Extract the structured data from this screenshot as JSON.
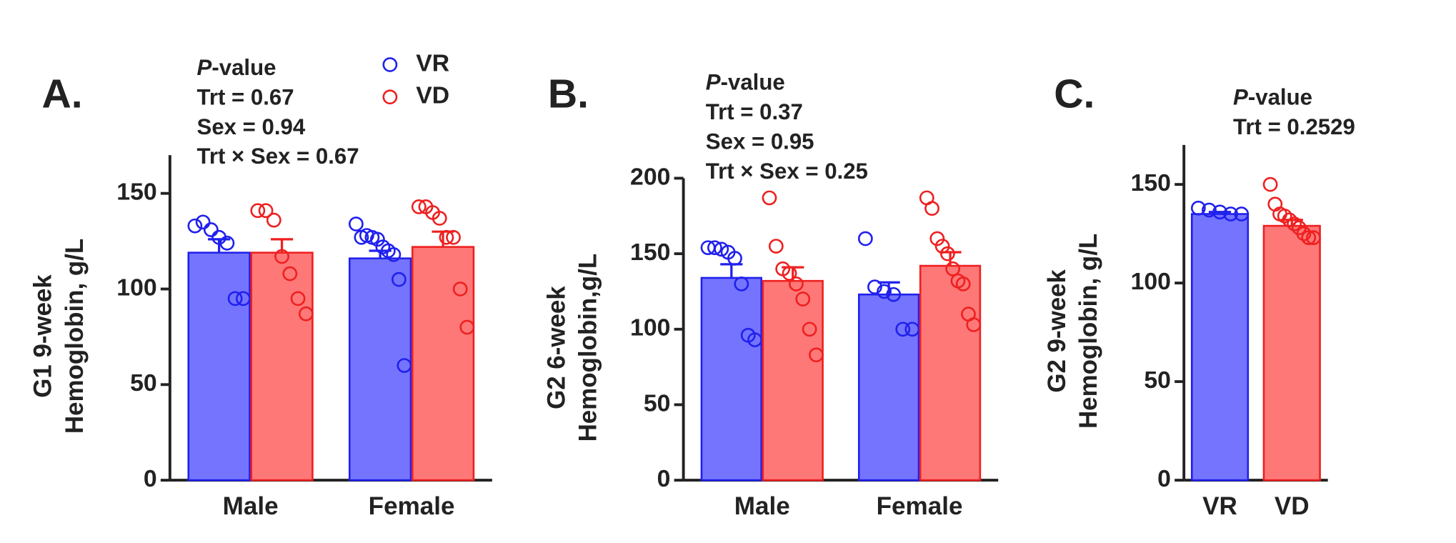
{
  "chart_data": [
    {
      "type": "bar",
      "label": "A.",
      "ylabel": [
        "G1 9-week",
        "Hemoglobin, g/L"
      ],
      "annotations": [
        "P-value",
        "Trt = 0.67",
        "Sex = 0.94",
        "Trt × Sex = 0.67"
      ],
      "categories": [
        "Male",
        "Female"
      ],
      "legend": true,
      "ylim": [
        0,
        170
      ],
      "yticks": [
        0,
        50,
        100,
        150
      ],
      "series": [
        {
          "name": "VR",
          "color": "#7474ff",
          "edge": "#2020ee",
          "values": [
            119,
            116
          ],
          "errors": [
            7,
            4
          ],
          "points": [
            [
              133,
              135,
              131,
              127,
              124,
              95,
              95
            ],
            [
              134,
              127,
              128,
              127,
              126,
              122,
              120,
              118,
              105,
              60
            ]
          ]
        },
        {
          "name": "VD",
          "color": "#ff7878",
          "edge": "#ee2020",
          "values": [
            119,
            122
          ],
          "errors": [
            7,
            8
          ],
          "points": [
            [
              141,
              141,
              136,
              117,
              108,
              95,
              87
            ],
            [
              143,
              143,
              140,
              137,
              127,
              127,
              100,
              80
            ]
          ]
        }
      ]
    },
    {
      "type": "bar",
      "label": "B.",
      "ylabel": [
        "G2 6-week",
        "Hemoglobin,g/L"
      ],
      "annotations": [
        "P-value",
        "Trt = 0.37",
        "Sex = 0.95",
        "Trt × Sex = 0.25"
      ],
      "categories": [
        "Male",
        "Female"
      ],
      "legend": false,
      "ylim": [
        0,
        200
      ],
      "yticks": [
        0,
        50,
        100,
        150,
        200
      ],
      "series": [
        {
          "name": "VR",
          "color": "#7474ff",
          "edge": "#2020ee",
          "values": [
            134,
            123
          ],
          "errors": [
            9,
            8
          ],
          "points": [
            [
              154,
              154,
              153,
              151,
              147,
              130,
              96,
              93
            ],
            [
              160,
              128,
              125,
              123,
              100,
              100
            ]
          ]
        },
        {
          "name": "VD",
          "color": "#ff7878",
          "edge": "#ee2020",
          "values": [
            132,
            142
          ],
          "errors": [
            9,
            9
          ],
          "points": [
            [
              187,
              155,
              140,
              137,
              130,
              120,
              100,
              83
            ],
            [
              187,
              180,
              160,
              155,
              150,
              140,
              132,
              130,
              110,
              103
            ]
          ]
        }
      ]
    },
    {
      "type": "bar",
      "label": "C.",
      "ylabel": [
        "G2 9-week",
        "Hemoglobin, g/L"
      ],
      "annotations": [
        "P-value",
        "Trt = 0.2529"
      ],
      "categories": [
        "VR",
        "VD"
      ],
      "legend": false,
      "ylim": [
        0,
        170
      ],
      "yticks": [
        0,
        50,
        100,
        150
      ],
      "values": [
        135,
        129
      ],
      "errors": [
        1,
        3
      ],
      "colors": [
        "#7474ff",
        "#ff7878"
      ],
      "edges": [
        "#2020ee",
        "#ee2020"
      ],
      "points": [
        [
          138,
          137,
          136,
          135,
          135
        ],
        [
          150,
          140,
          135,
          134,
          132,
          130,
          128,
          125,
          123,
          123
        ]
      ]
    }
  ]
}
